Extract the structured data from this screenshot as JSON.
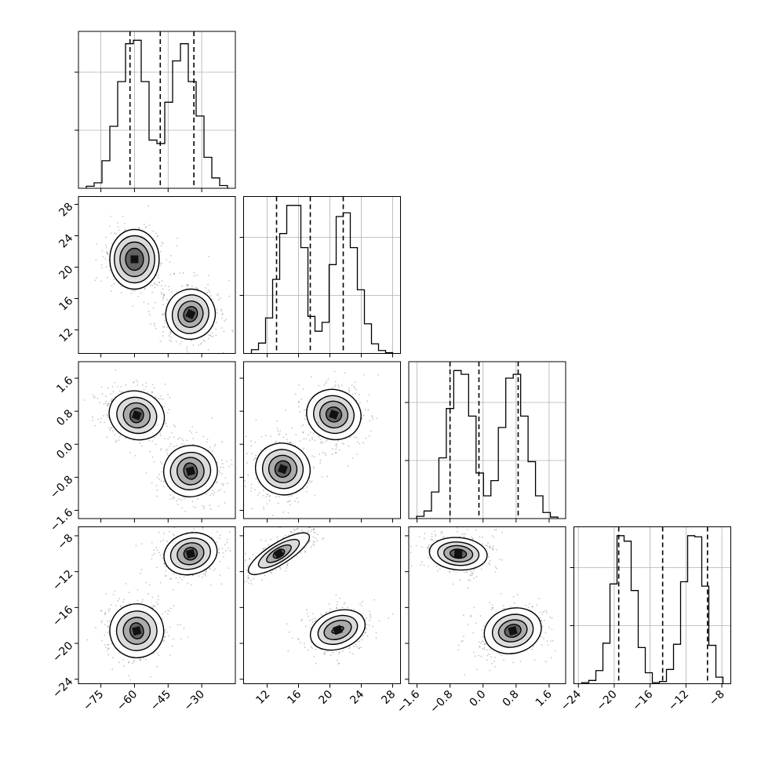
{
  "chart_data": {
    "type": "corner",
    "grid": true,
    "parameters": [
      {
        "index": 0,
        "range": [
          -85,
          -15
        ],
        "ticks": [
          -75,
          -60,
          -45,
          -30
        ],
        "tick_labels": [
          "−75",
          "−60",
          "−45",
          "−30"
        ],
        "quantiles": [
          -62,
          -48.5,
          -33.5
        ],
        "hist_bins": [
          0.3,
          0.8,
          4.0,
          9.0,
          15.5,
          21.0,
          21.5,
          15.5,
          7.0,
          6.5,
          12.5,
          18.5,
          21.0,
          15.5,
          10.5,
          4.5,
          1.5,
          0.4
        ]
      },
      {
        "index": 1,
        "range": [
          9,
          29
        ],
        "ticks": [
          12,
          16,
          20,
          24,
          28
        ],
        "tick_labels": [
          "12",
          "16",
          "20",
          "24",
          "28"
        ],
        "quantiles": [
          13.2,
          17.5,
          21.7
        ],
        "hist_bins": [
          0.5,
          1.4,
          4.8,
          10.0,
          16.2,
          20.0,
          20.0,
          14.3,
          5.0,
          3.0,
          4.2,
          12.0,
          18.5,
          19.0,
          14.3,
          8.6,
          4.0,
          1.3,
          0.4,
          0.1
        ]
      },
      {
        "index": 2,
        "range": [
          -1.8,
          2.0
        ],
        "ticks": [
          -1.6,
          -0.8,
          0.0,
          0.8,
          1.6
        ],
        "tick_labels": [
          "−1.6",
          "−0.8",
          "0.0",
          "0.8",
          "1.6"
        ],
        "quantiles": [
          -0.8,
          -0.1,
          0.85
        ],
        "hist_bins": [
          0.3,
          1.0,
          3.5,
          8.0,
          14.5,
          19.5,
          19.0,
          13.5,
          6.0,
          3.0,
          5.0,
          12.0,
          18.5,
          19.0,
          13.5,
          7.5,
          3.0,
          0.8,
          0.2
        ]
      },
      {
        "index": 3,
        "range": [
          -24.5,
          -7
        ],
        "ticks": [
          -24,
          -20,
          -16,
          -12,
          -8
        ],
        "tick_labels": [
          "−24",
          "−20",
          "−16",
          "−12",
          "−8"
        ],
        "quantiles": [
          -19.5,
          -14.6,
          -9.6
        ],
        "hist_bins": [
          0.1,
          0.3,
          1.2,
          3.7,
          9.1,
          13.5,
          13.0,
          8.5,
          3.3,
          1.0,
          0.1,
          0.2,
          1.3,
          3.6,
          9.3,
          13.5,
          13.4,
          8.9,
          3.5,
          0.6
        ]
      }
    ],
    "scatter_panels": [
      {
        "x_param": 0,
        "y_param": 1,
        "y_ticks": [
          12,
          16,
          20,
          24,
          28
        ],
        "y_tick_labels": [
          "12",
          "16",
          "20",
          "24",
          "28"
        ],
        "modes": [
          {
            "center": [
              -60,
              21
            ],
            "contour_radii": [
              [
                4,
                1.4
              ],
              [
                6.5,
                2.2
              ],
              [
                9,
                3.0
              ],
              [
                11,
                3.8
              ]
            ],
            "tilt_deg": 0
          },
          {
            "center": [
              -35,
              14
            ],
            "contour_radii": [
              [
                3,
                1.0
              ],
              [
                5.5,
                1.7
              ],
              [
                8,
                2.5
              ],
              [
                11,
                3.2
              ]
            ],
            "tilt_deg": -25
          }
        ]
      },
      {
        "x_param": 0,
        "y_param": 2,
        "y_ticks": [
          -1.6,
          -0.8,
          0.0,
          0.8,
          1.6
        ],
        "y_tick_labels": [
          "−1.6",
          "−0.8",
          "0.0",
          "0.8",
          "1.6"
        ],
        "modes": [
          {
            "center": [
              -59,
              0.7
            ],
            "contour_radii": [
              [
                3,
                0.18
              ],
              [
                6,
                0.3
              ],
              [
                9,
                0.43
              ],
              [
                12.5,
                0.58
              ]
            ],
            "tilt_deg": -20
          },
          {
            "center": [
              -35,
              -0.65
            ],
            "contour_radii": [
              [
                3,
                0.2
              ],
              [
                6,
                0.33
              ],
              [
                9,
                0.45
              ],
              [
                12,
                0.62
              ]
            ],
            "tilt_deg": 15
          }
        ]
      },
      {
        "x_param": 0,
        "y_param": 3,
        "y_ticks": [
          -24,
          -20,
          -16,
          -12,
          -8
        ],
        "y_tick_labels": [
          "−24",
          "−20",
          "−16",
          "−12",
          "−8"
        ],
        "modes": [
          {
            "center": [
              -59,
              -18.6
            ],
            "contour_radii": [
              [
                3,
                0.9
              ],
              [
                6,
                1.5
              ],
              [
                9,
                2.2
              ],
              [
                12,
                3.0
              ]
            ],
            "tilt_deg": 15
          },
          {
            "center": [
              -35,
              -10
            ],
            "contour_radii": [
              [
                3,
                0.7
              ],
              [
                6,
                1.2
              ],
              [
                9,
                1.7
              ],
              [
                12,
                2.3
              ]
            ],
            "tilt_deg": 15
          }
        ]
      },
      {
        "x_param": 1,
        "y_param": 2,
        "modes": [
          {
            "center": [
              20.5,
              0.72
            ],
            "contour_radii": [
              [
                1,
                0.18
              ],
              [
                1.8,
                0.32
              ],
              [
                2.6,
                0.45
              ],
              [
                3.5,
                0.6
              ]
            ],
            "tilt_deg": -20
          },
          {
            "center": [
              14,
              -0.6
            ],
            "contour_radii": [
              [
                1,
                0.2
              ],
              [
                1.8,
                0.33
              ],
              [
                2.6,
                0.47
              ],
              [
                3.5,
                0.62
              ]
            ],
            "tilt_deg": -20
          }
        ]
      },
      {
        "x_param": 1,
        "y_param": 3,
        "modes": [
          {
            "center": [
              13.5,
              -10
            ],
            "contour_radii": [
              [
                0.8,
                0.4
              ],
              [
                1.8,
                0.6
              ],
              [
                3,
                0.9
              ],
              [
                4.5,
                1.2
              ]
            ],
            "tilt_deg": 32
          },
          {
            "center": [
              21,
              -18.5
            ],
            "contour_radii": [
              [
                0.8,
                0.3
              ],
              [
                1.8,
                1.0
              ],
              [
                2.6,
                1.5
              ],
              [
                3.6,
                2.1
              ]
            ],
            "tilt_deg": 20
          }
        ]
      },
      {
        "x_param": 2,
        "y_param": 3,
        "modes": [
          {
            "center": [
              -0.6,
              -10
            ],
            "contour_radii": [
              [
                0.2,
                0.5
              ],
              [
                0.35,
                0.9
              ],
              [
                0.5,
                1.3
              ],
              [
                0.7,
                1.8
              ]
            ],
            "tilt_deg": -5
          },
          {
            "center": [
              0.72,
              -18.6
            ],
            "contour_radii": [
              [
                0.2,
                0.7
              ],
              [
                0.35,
                1.2
              ],
              [
                0.5,
                1.8
              ],
              [
                0.7,
                2.5
              ]
            ],
            "tilt_deg": 15
          }
        ]
      }
    ]
  }
}
